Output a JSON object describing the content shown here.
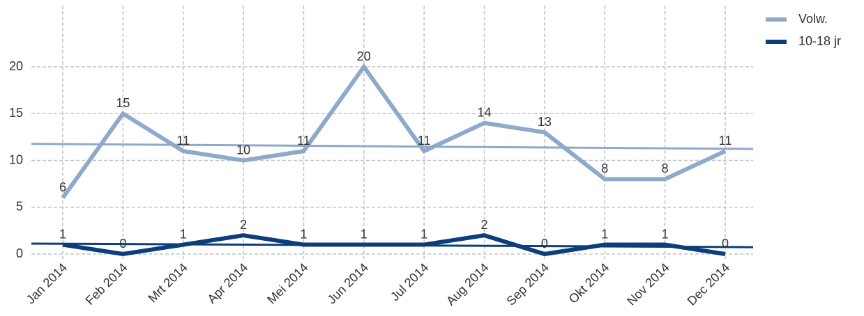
{
  "chart_data": {
    "type": "line",
    "categories": [
      "Jan 2014",
      "Feb 2014",
      "Mrt 2014",
      "Apr 2014",
      "Mei 2014",
      "Jun 2014",
      "Jul 2014",
      "Aug 2014",
      "Sep 2014",
      "Okt 2014",
      "Nov 2014",
      "Dec 2014"
    ],
    "series": [
      {
        "name": "Volw.",
        "color": "#8fa9cb",
        "values": [
          6,
          15,
          11,
          10,
          11,
          20,
          11,
          14,
          13,
          8,
          8,
          11
        ],
        "trend": [
          11.75,
          11.25
        ]
      },
      {
        "name": "10-18 jr",
        "color": "#0c3e7a",
        "values": [
          1,
          0,
          1,
          2,
          1,
          1,
          1,
          2,
          0,
          1,
          1,
          0
        ],
        "trend": [
          1.1,
          0.75
        ]
      }
    ],
    "ylim": [
      0,
      20
    ],
    "yticks": [
      0,
      5,
      10,
      15,
      20
    ],
    "grid": true,
    "legend": "top-right"
  }
}
